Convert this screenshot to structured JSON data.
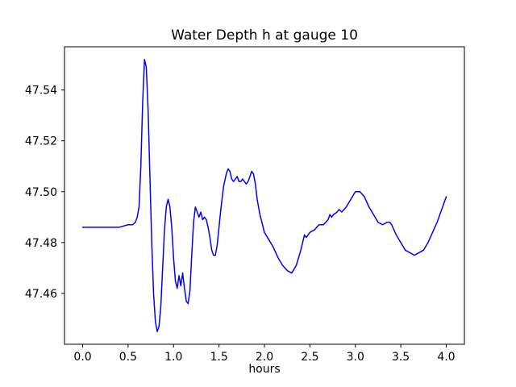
{
  "chart_data": {
    "type": "line",
    "title": "Water Depth h at gauge 10",
    "xlabel": "hours",
    "ylabel": "",
    "line_color": "#0000ff",
    "line_width": 1.5,
    "grid": false,
    "legend": "none",
    "xlim": [
      -0.2,
      4.2
    ],
    "ylim": [
      47.44,
      47.557
    ],
    "xticks": {
      "values": [
        0.0,
        0.5,
        1.0,
        1.5,
        2.0,
        2.5,
        3.0,
        3.5,
        4.0
      ],
      "labels": [
        "0.0",
        "0.5",
        "1.0",
        "1.5",
        "2.0",
        "2.5",
        "3.0",
        "3.5",
        "4.0"
      ]
    },
    "yticks": {
      "values": [
        47.46,
        47.48,
        47.5,
        47.52,
        47.54
      ],
      "labels": [
        "47.46",
        "47.48",
        "47.50",
        "47.52",
        "47.54"
      ]
    },
    "points": [
      [
        0.0,
        47.486
      ],
      [
        0.1,
        47.486
      ],
      [
        0.2,
        47.486
      ],
      [
        0.3,
        47.486
      ],
      [
        0.4,
        47.486
      ],
      [
        0.5,
        47.487
      ],
      [
        0.55,
        47.487
      ],
      [
        0.58,
        47.488
      ],
      [
        0.6,
        47.49
      ],
      [
        0.62,
        47.494
      ],
      [
        0.64,
        47.51
      ],
      [
        0.66,
        47.535
      ],
      [
        0.68,
        47.552
      ],
      [
        0.7,
        47.549
      ],
      [
        0.72,
        47.532
      ],
      [
        0.74,
        47.506
      ],
      [
        0.76,
        47.48
      ],
      [
        0.78,
        47.46
      ],
      [
        0.8,
        47.449
      ],
      [
        0.82,
        47.445
      ],
      [
        0.84,
        47.447
      ],
      [
        0.86,
        47.455
      ],
      [
        0.88,
        47.47
      ],
      [
        0.9,
        47.485
      ],
      [
        0.92,
        47.494
      ],
      [
        0.94,
        47.497
      ],
      [
        0.96,
        47.494
      ],
      [
        0.98,
        47.486
      ],
      [
        1.0,
        47.474
      ],
      [
        1.02,
        47.465
      ],
      [
        1.04,
        47.462
      ],
      [
        1.06,
        47.467
      ],
      [
        1.08,
        47.463
      ],
      [
        1.1,
        47.468
      ],
      [
        1.12,
        47.462
      ],
      [
        1.14,
        47.457
      ],
      [
        1.16,
        47.456
      ],
      [
        1.18,
        47.461
      ],
      [
        1.2,
        47.475
      ],
      [
        1.22,
        47.488
      ],
      [
        1.24,
        47.494
      ],
      [
        1.26,
        47.492
      ],
      [
        1.28,
        47.49
      ],
      [
        1.3,
        47.492
      ],
      [
        1.32,
        47.489
      ],
      [
        1.34,
        47.49
      ],
      [
        1.36,
        47.489
      ],
      [
        1.38,
        47.486
      ],
      [
        1.4,
        47.482
      ],
      [
        1.42,
        47.477
      ],
      [
        1.44,
        47.475
      ],
      [
        1.46,
        47.475
      ],
      [
        1.48,
        47.479
      ],
      [
        1.5,
        47.486
      ],
      [
        1.52,
        47.493
      ],
      [
        1.55,
        47.502
      ],
      [
        1.58,
        47.507
      ],
      [
        1.6,
        47.509
      ],
      [
        1.62,
        47.508
      ],
      [
        1.64,
        47.505
      ],
      [
        1.66,
        47.504
      ],
      [
        1.68,
        47.505
      ],
      [
        1.7,
        47.506
      ],
      [
        1.72,
        47.504
      ],
      [
        1.74,
        47.504
      ],
      [
        1.76,
        47.505
      ],
      [
        1.78,
        47.504
      ],
      [
        1.8,
        47.503
      ],
      [
        1.82,
        47.504
      ],
      [
        1.84,
        47.506
      ],
      [
        1.86,
        47.508
      ],
      [
        1.88,
        47.507
      ],
      [
        1.9,
        47.503
      ],
      [
        1.92,
        47.497
      ],
      [
        1.95,
        47.491
      ],
      [
        2.0,
        47.484
      ],
      [
        2.05,
        47.481
      ],
      [
        2.1,
        47.478
      ],
      [
        2.15,
        47.474
      ],
      [
        2.2,
        47.471
      ],
      [
        2.25,
        47.469
      ],
      [
        2.3,
        47.468
      ],
      [
        2.35,
        47.471
      ],
      [
        2.4,
        47.477
      ],
      [
        2.42,
        47.48
      ],
      [
        2.44,
        47.483
      ],
      [
        2.46,
        47.482
      ],
      [
        2.48,
        47.483
      ],
      [
        2.5,
        47.484
      ],
      [
        2.55,
        47.485
      ],
      [
        2.6,
        47.487
      ],
      [
        2.65,
        47.487
      ],
      [
        2.7,
        47.489
      ],
      [
        2.72,
        47.491
      ],
      [
        2.74,
        47.49
      ],
      [
        2.76,
        47.491
      ],
      [
        2.8,
        47.492
      ],
      [
        2.82,
        47.493
      ],
      [
        2.85,
        47.492
      ],
      [
        2.9,
        47.494
      ],
      [
        2.95,
        47.497
      ],
      [
        3.0,
        47.5
      ],
      [
        3.05,
        47.5
      ],
      [
        3.1,
        47.498
      ],
      [
        3.15,
        47.494
      ],
      [
        3.2,
        47.491
      ],
      [
        3.25,
        47.488
      ],
      [
        3.3,
        47.487
      ],
      [
        3.35,
        47.488
      ],
      [
        3.38,
        47.488
      ],
      [
        3.4,
        47.487
      ],
      [
        3.45,
        47.483
      ],
      [
        3.5,
        47.48
      ],
      [
        3.55,
        47.477
      ],
      [
        3.6,
        47.476
      ],
      [
        3.65,
        47.475
      ],
      [
        3.7,
        47.476
      ],
      [
        3.75,
        47.477
      ],
      [
        3.8,
        47.48
      ],
      [
        3.85,
        47.484
      ],
      [
        3.9,
        47.488
      ],
      [
        3.95,
        47.493
      ],
      [
        4.0,
        47.498
      ]
    ]
  }
}
